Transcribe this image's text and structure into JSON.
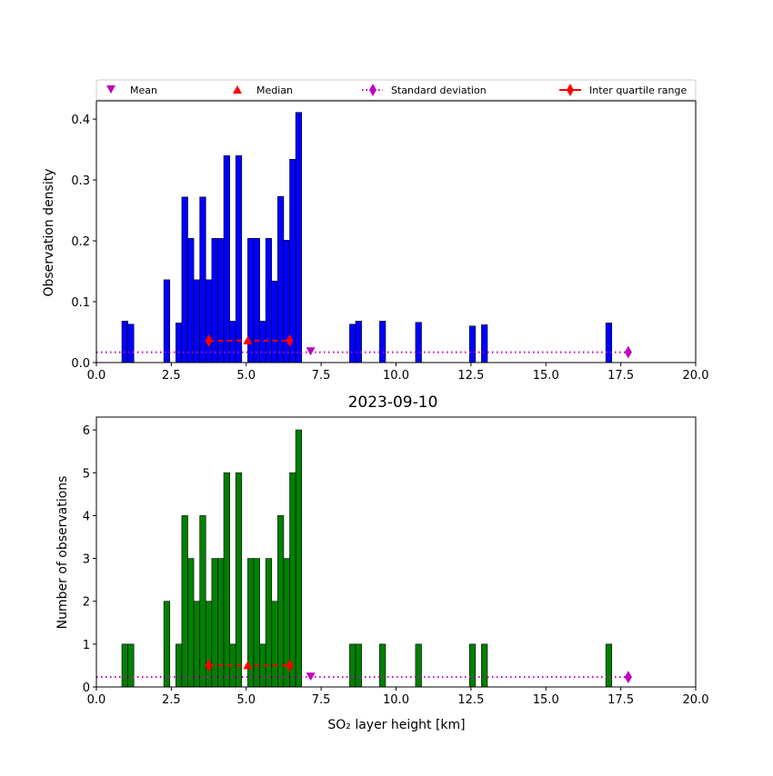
{
  "legend": {
    "mean_label": "Mean",
    "median_label": "Median",
    "std_label": "Standard deviation",
    "iqr_label": "Inter quartile range"
  },
  "colors": {
    "density_bars": "#0000ff",
    "count_bars": "#008000",
    "mean": "#bf00bf",
    "median": "#ff0000",
    "std": "#bf00bf",
    "iqr": "#ff0000"
  },
  "chart_data": [
    {
      "type": "bar",
      "title": "",
      "xlabel": "",
      "ylabel": "Observation density",
      "xlim": [
        0,
        20
      ],
      "ylim": [
        0,
        0.43
      ],
      "xticks": [
        "0.0",
        "2.5",
        "5.0",
        "7.5",
        "10.0",
        "12.5",
        "15.0",
        "17.5",
        "20.0"
      ],
      "xtick_values": [
        0,
        2.5,
        5,
        7.5,
        10,
        12.5,
        15,
        17.5,
        20
      ],
      "yticks": [
        "0.0",
        "0.1",
        "0.2",
        "0.3",
        "0.4"
      ],
      "ytick_values": [
        0,
        0.1,
        0.2,
        0.3,
        0.4
      ],
      "bars": [
        {
          "x0": 0.85,
          "x1": 1.05,
          "y": 0.068
        },
        {
          "x0": 1.05,
          "x1": 1.25,
          "y": 0.063
        },
        {
          "x0": 2.25,
          "x1": 2.45,
          "y": 0.136
        },
        {
          "x0": 2.65,
          "x1": 2.85,
          "y": 0.065
        },
        {
          "x0": 2.85,
          "x1": 3.05,
          "y": 0.272
        },
        {
          "x0": 3.05,
          "x1": 3.25,
          "y": 0.204
        },
        {
          "x0": 3.25,
          "x1": 3.45,
          "y": 0.136
        },
        {
          "x0": 3.45,
          "x1": 3.65,
          "y": 0.272
        },
        {
          "x0": 3.65,
          "x1": 3.85,
          "y": 0.136
        },
        {
          "x0": 3.85,
          "x1": 4.05,
          "y": 0.204
        },
        {
          "x0": 4.05,
          "x1": 4.25,
          "y": 0.204
        },
        {
          "x0": 4.25,
          "x1": 4.45,
          "y": 0.34
        },
        {
          "x0": 4.45,
          "x1": 4.65,
          "y": 0.068
        },
        {
          "x0": 4.65,
          "x1": 4.85,
          "y": 0.34
        },
        {
          "x0": 5.05,
          "x1": 5.25,
          "y": 0.204
        },
        {
          "x0": 5.25,
          "x1": 5.45,
          "y": 0.204
        },
        {
          "x0": 5.45,
          "x1": 5.65,
          "y": 0.068
        },
        {
          "x0": 5.65,
          "x1": 5.85,
          "y": 0.204
        },
        {
          "x0": 5.85,
          "x1": 6.05,
          "y": 0.134
        },
        {
          "x0": 6.05,
          "x1": 6.25,
          "y": 0.273
        },
        {
          "x0": 6.25,
          "x1": 6.45,
          "y": 0.201
        },
        {
          "x0": 6.45,
          "x1": 6.65,
          "y": 0.334
        },
        {
          "x0": 6.65,
          "x1": 6.85,
          "y": 0.411
        },
        {
          "x0": 8.45,
          "x1": 8.65,
          "y": 0.063
        },
        {
          "x0": 8.65,
          "x1": 8.85,
          "y": 0.068
        },
        {
          "x0": 9.45,
          "x1": 9.65,
          "y": 0.068
        },
        {
          "x0": 10.65,
          "x1": 10.85,
          "y": 0.066
        },
        {
          "x0": 12.45,
          "x1": 12.65,
          "y": 0.06
        },
        {
          "x0": 12.85,
          "x1": 13.05,
          "y": 0.062
        },
        {
          "x0": 17.0,
          "x1": 17.2,
          "y": 0.065
        }
      ],
      "mean": {
        "x": 7.15,
        "y": 0.019
      },
      "median": {
        "x": 5.05,
        "y": 0.036
      },
      "std": {
        "x0": 0,
        "x1": 17.75,
        "y": 0.017
      },
      "iqr": {
        "x0": 3.75,
        "x1": 6.45,
        "y": 0.036
      }
    },
    {
      "type": "bar",
      "title": "2023-09-10",
      "xlabel": "SO₂ layer height [km]",
      "ylabel": "Number of observations",
      "xlim": [
        0,
        20
      ],
      "ylim": [
        0,
        6.3
      ],
      "xticks": [
        "0.0",
        "2.5",
        "5.0",
        "7.5",
        "10.0",
        "12.5",
        "15.0",
        "17.5",
        "20.0"
      ],
      "xtick_values": [
        0,
        2.5,
        5,
        7.5,
        10,
        12.5,
        15,
        17.5,
        20
      ],
      "yticks": [
        "0",
        "1",
        "2",
        "3",
        "4",
        "5",
        "6"
      ],
      "ytick_values": [
        0,
        1,
        2,
        3,
        4,
        5,
        6
      ],
      "bars": [
        {
          "x0": 0.85,
          "x1": 1.05,
          "y": 1
        },
        {
          "x0": 1.05,
          "x1": 1.25,
          "y": 1
        },
        {
          "x0": 2.25,
          "x1": 2.45,
          "y": 2
        },
        {
          "x0": 2.65,
          "x1": 2.85,
          "y": 1
        },
        {
          "x0": 2.85,
          "x1": 3.05,
          "y": 4
        },
        {
          "x0": 3.05,
          "x1": 3.25,
          "y": 3
        },
        {
          "x0": 3.25,
          "x1": 3.45,
          "y": 2
        },
        {
          "x0": 3.45,
          "x1": 3.65,
          "y": 4
        },
        {
          "x0": 3.65,
          "x1": 3.85,
          "y": 2
        },
        {
          "x0": 3.85,
          "x1": 4.05,
          "y": 3
        },
        {
          "x0": 4.05,
          "x1": 4.25,
          "y": 3
        },
        {
          "x0": 4.25,
          "x1": 4.45,
          "y": 5
        },
        {
          "x0": 4.45,
          "x1": 4.65,
          "y": 1
        },
        {
          "x0": 4.65,
          "x1": 4.85,
          "y": 5
        },
        {
          "x0": 5.05,
          "x1": 5.25,
          "y": 3
        },
        {
          "x0": 5.25,
          "x1": 5.45,
          "y": 3
        },
        {
          "x0": 5.45,
          "x1": 5.65,
          "y": 1
        },
        {
          "x0": 5.65,
          "x1": 5.85,
          "y": 3
        },
        {
          "x0": 5.85,
          "x1": 6.05,
          "y": 2
        },
        {
          "x0": 6.05,
          "x1": 6.25,
          "y": 4
        },
        {
          "x0": 6.25,
          "x1": 6.45,
          "y": 3
        },
        {
          "x0": 6.45,
          "x1": 6.65,
          "y": 5
        },
        {
          "x0": 6.65,
          "x1": 6.85,
          "y": 6
        },
        {
          "x0": 8.45,
          "x1": 8.65,
          "y": 1
        },
        {
          "x0": 8.65,
          "x1": 8.85,
          "y": 1
        },
        {
          "x0": 9.45,
          "x1": 9.65,
          "y": 1
        },
        {
          "x0": 10.65,
          "x1": 10.85,
          "y": 1
        },
        {
          "x0": 12.45,
          "x1": 12.65,
          "y": 1
        },
        {
          "x0": 12.85,
          "x1": 13.05,
          "y": 1
        },
        {
          "x0": 17.0,
          "x1": 17.2,
          "y": 1
        }
      ],
      "mean": {
        "x": 7.15,
        "y": 0.25
      },
      "median": {
        "x": 5.05,
        "y": 0.5
      },
      "std": {
        "x0": 0,
        "x1": 17.75,
        "y": 0.23
      },
      "iqr": {
        "x0": 3.75,
        "x1": 6.45,
        "y": 0.5
      }
    }
  ]
}
